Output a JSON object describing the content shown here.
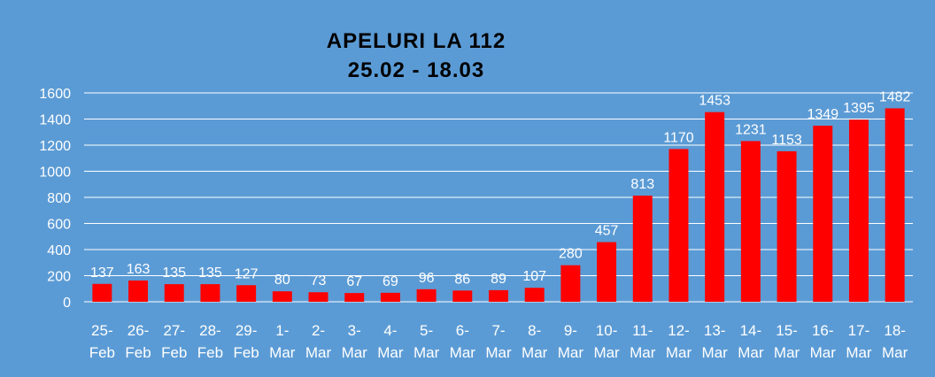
{
  "chart_data": {
    "type": "bar",
    "title": "APELURI LA 112",
    "subtitle": "25.02 - 18.03",
    "xlabel": "",
    "ylabel": "",
    "categories": [
      "25-Feb",
      "26-Feb",
      "27-Feb",
      "28-Feb",
      "29-Feb",
      "1-Mar",
      "2-Mar",
      "3-Mar",
      "4-Mar",
      "5-Mar",
      "6-Mar",
      "7-Mar",
      "8-Mar",
      "9-Mar",
      "10-Mar",
      "11-Mar",
      "12-Mar",
      "13-Mar",
      "14-Mar",
      "15-Mar",
      "16-Mar",
      "17-Mar",
      "18-Mar"
    ],
    "category_lines": [
      [
        "25-",
        "Feb"
      ],
      [
        "26-",
        "Feb"
      ],
      [
        "27-",
        "Feb"
      ],
      [
        "28-",
        "Feb"
      ],
      [
        "29-",
        "Feb"
      ],
      [
        "1-",
        "Mar"
      ],
      [
        "2-",
        "Mar"
      ],
      [
        "3-",
        "Mar"
      ],
      [
        "4-",
        "Mar"
      ],
      [
        "5-",
        "Mar"
      ],
      [
        "6-",
        "Mar"
      ],
      [
        "7-",
        "Mar"
      ],
      [
        "8-",
        "Mar"
      ],
      [
        "9-",
        "Mar"
      ],
      [
        "10-",
        "Mar"
      ],
      [
        "11-",
        "Mar"
      ],
      [
        "12-",
        "Mar"
      ],
      [
        "13-",
        "Mar"
      ],
      [
        "14-",
        "Mar"
      ],
      [
        "15-",
        "Mar"
      ],
      [
        "16-",
        "Mar"
      ],
      [
        "17-",
        "Mar"
      ],
      [
        "18-",
        "Mar"
      ]
    ],
    "values": [
      137,
      163,
      135,
      135,
      127,
      80,
      73,
      67,
      69,
      96,
      86,
      89,
      107,
      280,
      457,
      813,
      1170,
      1453,
      1231,
      1153,
      1349,
      1395,
      1482
    ],
    "ylim": [
      0,
      1600
    ],
    "yticks": [
      0,
      200,
      400,
      600,
      800,
      1000,
      1200,
      1400,
      1600
    ],
    "grid": true,
    "legend": "none",
    "data_labels": true
  },
  "colors": {
    "background": "#5b9bd5",
    "bar": "#ff0000",
    "grid": "#ffffff",
    "text": "#ffffff",
    "title": "#000000"
  }
}
